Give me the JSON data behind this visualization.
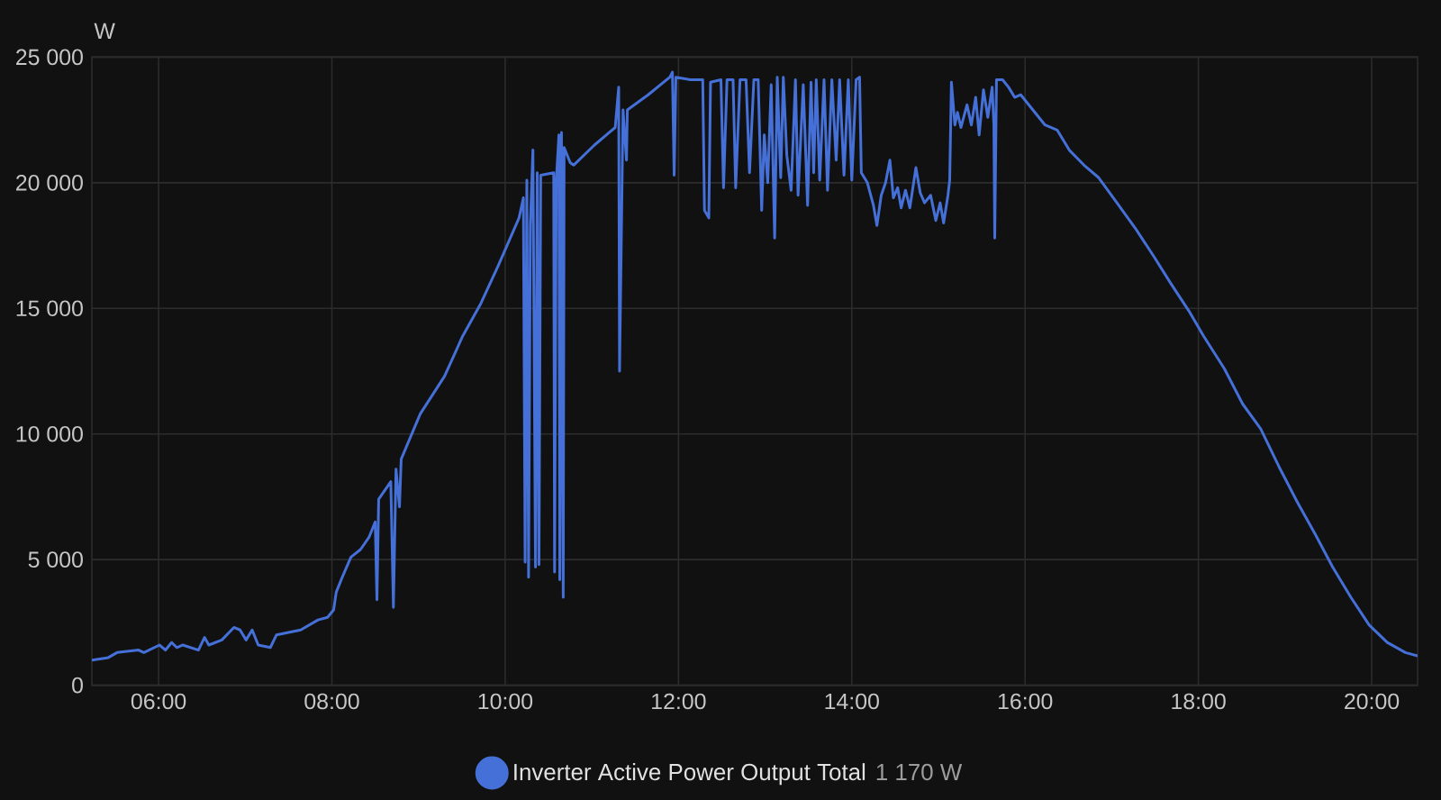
{
  "chart_data": {
    "type": "line",
    "ylabel": "W",
    "x": [
      5.23,
      5.42,
      5.52,
      5.77,
      5.83,
      6.01,
      6.08,
      6.15,
      6.21,
      6.28,
      6.46,
      6.53,
      6.58,
      6.73,
      6.87,
      6.94,
      7.01,
      7.08,
      7.15,
      7.29,
      7.36,
      7.64,
      7.84,
      7.95,
      8.02,
      8.05,
      8.12,
      8.22,
      8.33,
      8.43,
      8.5,
      8.52,
      8.54,
      8.68,
      8.71,
      8.74,
      8.78,
      8.8,
      9.02,
      9.3,
      9.51,
      9.72,
      9.92,
      10.16,
      10.21,
      10.23,
      10.25,
      10.27,
      10.29,
      10.32,
      10.35,
      10.37,
      10.39,
      10.41,
      10.56,
      10.57,
      10.59,
      10.62,
      10.63,
      10.65,
      10.67,
      10.68,
      10.75,
      10.79,
      11.03,
      11.2,
      11.27,
      11.31,
      11.32,
      11.36,
      11.4,
      11.41,
      11.65,
      11.9,
      11.93,
      11.95,
      11.97,
      12.14,
      12.28,
      12.3,
      12.35,
      12.37,
      12.49,
      12.52,
      12.56,
      12.63,
      12.66,
      12.71,
      12.78,
      12.82,
      12.87,
      12.92,
      12.96,
      12.99,
      13.03,
      13.07,
      13.11,
      13.14,
      13.18,
      13.21,
      13.25,
      13.3,
      13.35,
      13.38,
      13.44,
      13.49,
      13.53,
      13.56,
      13.59,
      13.63,
      13.68,
      13.72,
      13.77,
      13.82,
      13.86,
      13.91,
      13.96,
      14.0,
      14.05,
      14.09,
      14.11,
      14.18,
      14.25,
      14.29,
      14.34,
      14.39,
      14.44,
      14.48,
      14.53,
      14.57,
      14.62,
      14.67,
      14.74,
      14.79,
      14.84,
      14.91,
      14.97,
      15.02,
      15.06,
      15.11,
      15.13,
      15.15,
      15.19,
      15.22,
      15.26,
      15.33,
      15.38,
      15.43,
      15.47,
      15.52,
      15.57,
      15.62,
      15.64,
      15.65,
      15.67,
      15.74,
      15.81,
      15.88,
      15.95,
      16.09,
      16.23,
      16.37,
      16.51,
      16.68,
      16.85,
      17.06,
      17.27,
      17.48,
      17.68,
      17.89,
      18.06,
      18.3,
      18.51,
      18.72,
      18.93,
      19.14,
      19.35,
      19.55,
      19.76,
      19.97,
      20.18,
      20.39,
      20.53
    ],
    "series": [
      {
        "name": "Inverter Active Power Output Total",
        "color": "#4570d8",
        "values": [
          1000,
          1100,
          1300,
          1400,
          1300,
          1600,
          1400,
          1700,
          1500,
          1600,
          1400,
          1900,
          1600,
          1800,
          2300,
          2200,
          1800,
          2200,
          1600,
          1500,
          2000,
          2200,
          2600,
          2700,
          3000,
          3700,
          4300,
          5100,
          5400,
          5900,
          6500,
          3400,
          7400,
          8100,
          3100,
          8600,
          7100,
          9000,
          10800,
          12300,
          13900,
          15200,
          16700,
          18600,
          19400,
          4900,
          20100,
          4300,
          18300,
          21300,
          4700,
          20400,
          4800,
          20300,
          20400,
          4500,
          20100,
          21900,
          4200,
          22000,
          3500,
          21400,
          20800,
          20700,
          21500,
          22000,
          22200,
          23800,
          12500,
          22900,
          20900,
          22900,
          23500,
          24200,
          24400,
          20300,
          24200,
          24100,
          24100,
          18900,
          18600,
          24000,
          24100,
          19800,
          24100,
          24100,
          19800,
          24100,
          24100,
          20400,
          24100,
          24100,
          18900,
          21900,
          20000,
          23900,
          17800,
          24200,
          20200,
          24200,
          21100,
          19700,
          24100,
          19500,
          23900,
          19100,
          24000,
          20400,
          24100,
          20100,
          24100,
          19700,
          24100,
          20900,
          24100,
          20300,
          24100,
          20100,
          24100,
          24200,
          20400,
          20000,
          19100,
          18300,
          19500,
          20000,
          20900,
          19400,
          19800,
          19000,
          19700,
          19000,
          20600,
          19600,
          19200,
          19500,
          18500,
          19200,
          18400,
          19500,
          20100,
          24000,
          22300,
          22800,
          22200,
          23100,
          22300,
          23400,
          21900,
          23700,
          22600,
          23800,
          22300,
          17800,
          24100,
          24100,
          23800,
          23400,
          23500,
          22900,
          22300,
          22100,
          21300,
          20700,
          20200,
          19200,
          18200,
          17100,
          16000,
          14900,
          13900,
          12600,
          11200,
          10200,
          8700,
          7300,
          6000,
          4700,
          3500,
          2400,
          1700,
          1300,
          1170
        ]
      }
    ],
    "annotations": [
      "1 170 W"
    ],
    "xlim": [
      5.23,
      20.53
    ],
    "xticks": [
      {
        "value": 6,
        "label": "06:00"
      },
      {
        "value": 8,
        "label": "08:00"
      },
      {
        "value": 10,
        "label": "10:00"
      },
      {
        "value": 12,
        "label": "12:00"
      },
      {
        "value": 14,
        "label": "14:00"
      },
      {
        "value": 16,
        "label": "16:00"
      },
      {
        "value": 18,
        "label": "18:00"
      },
      {
        "value": 20,
        "label": "20:00"
      }
    ],
    "ylim": [
      0,
      25000
    ],
    "yticks": [
      0,
      {
        "value": 5000,
        "label": "5 000"
      },
      {
        "value": 10000,
        "label": "10 000"
      },
      {
        "value": 15000,
        "label": "15 000"
      },
      {
        "value": 20000,
        "label": "20 000"
      },
      {
        "value": 25000,
        "label": "25 000"
      }
    ],
    "grid": true,
    "legend": "bottom"
  }
}
